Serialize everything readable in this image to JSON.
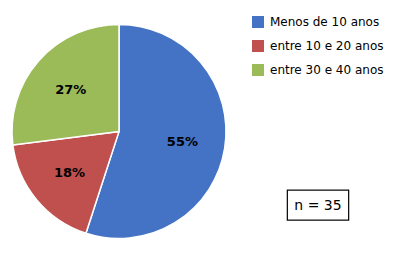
{
  "chart_data": {
    "type": "pie",
    "categories": [
      "Menos de 10 anos",
      "entre 10 e 20 anos",
      "entre 30 e 40 anos"
    ],
    "values": [
      55,
      18,
      27
    ],
    "value_labels": [
      "55%",
      "18%",
      "27%"
    ],
    "colors": [
      "#4472C4",
      "#C0504D",
      "#9BBB59"
    ],
    "data_labels": true,
    "legend": "right",
    "annotations": [
      "n = 35"
    ]
  }
}
